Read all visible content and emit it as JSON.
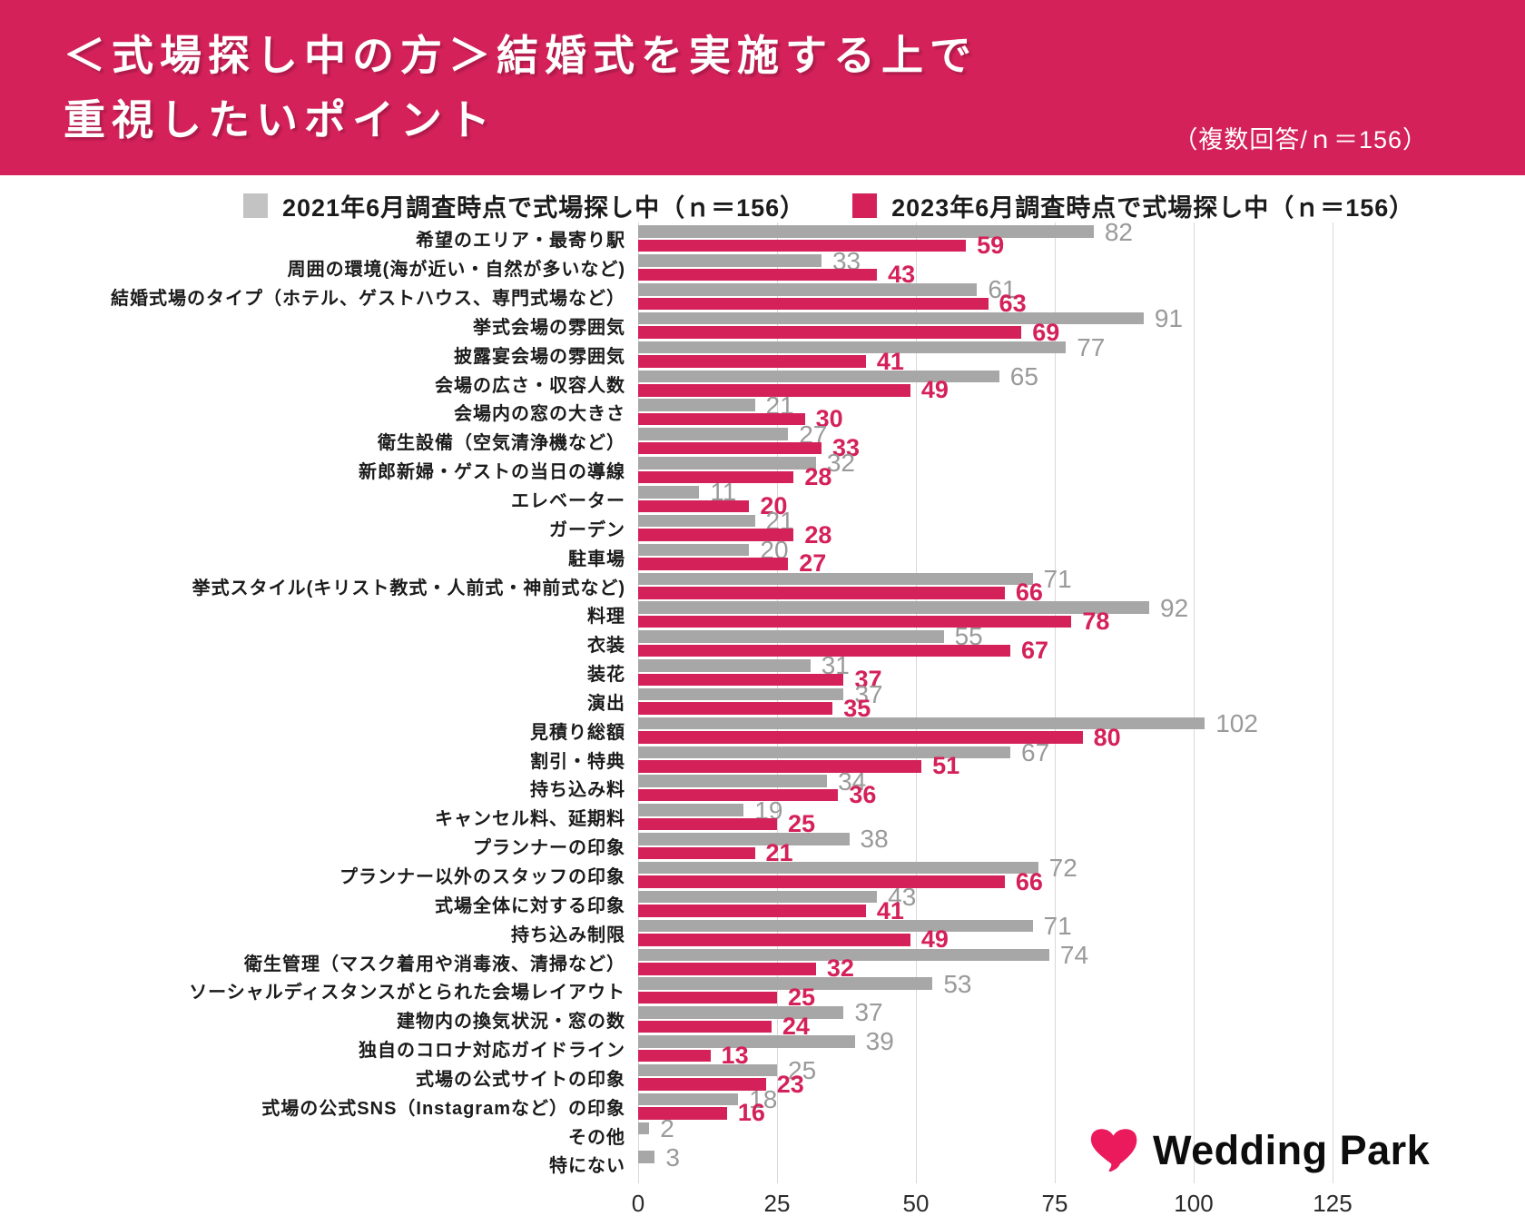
{
  "header": {
    "title_line1": "＜式場探し中の方＞結婚式を実施する上で",
    "title_line2": "重視したいポイント",
    "note": "（複数回答/ｎ＝156）"
  },
  "legend": {
    "items": [
      {
        "label": "2021年6月調査時点で式場探し中（ｎ＝156）",
        "swatch_color": "#c3c3c3"
      },
      {
        "label": "2023年6月調査時点で式場探し中（ｎ＝156）",
        "swatch_color": "#d4215a"
      }
    ]
  },
  "chart_data": {
    "type": "bar",
    "orientation": "horizontal",
    "title": "＜式場探し中の方＞結婚式を実施する上で重視したいポイント",
    "subtitle": "（複数回答/ｎ＝156）",
    "grid": true,
    "legend_position": "top",
    "x_ticks": [
      0,
      25,
      50,
      75,
      100,
      125
    ],
    "xlim": [
      0,
      141.7
    ],
    "categories": [
      "希望のエリア・最寄り駅",
      "周囲の環境(海が近い・自然が多いなど)",
      "結婚式場のタイプ（ホテル、ゲストハウス、専門式場など）",
      "挙式会場の雰囲気",
      "披露宴会場の雰囲気",
      "会場の広さ・収容人数",
      "会場内の窓の大きさ",
      "衛生設備（空気清浄機など）",
      "新郎新婦・ゲストの当日の導線",
      "エレベーター",
      "ガーデン",
      "駐車場",
      "挙式スタイル(キリスト教式・人前式・神前式など)",
      "料理",
      "衣装",
      "装花",
      "演出",
      "見積り総額",
      "割引・特典",
      "持ち込み料",
      "キャンセル料、延期料",
      "プランナーの印象",
      "プランナー以外のスタッフの印象",
      "式場全体に対する印象",
      "持ち込み制限",
      "衛生管理（マスク着用や消毒液、清掃など）",
      "ソーシャルディスタンスがとられた会場レイアウト",
      "建物内の換気状況・窓の数",
      "独自のコロナ対応ガイドライン",
      "式場の公式サイトの印象",
      "式場の公式SNS（Instagramなど）の印象",
      "その他",
      "特にない"
    ],
    "series": [
      {
        "name": "2021年6月調査時点で式場探し中（ｎ＝156）",
        "color": "#a7a7a7",
        "values": [
          82,
          33,
          61,
          91,
          77,
          65,
          21,
          27,
          32,
          11,
          21,
          20,
          71,
          92,
          55,
          31,
          37,
          102,
          67,
          34,
          19,
          38,
          72,
          43,
          71,
          74,
          53,
          37,
          39,
          25,
          18,
          2,
          3
        ]
      },
      {
        "name": "2023年6月調査時点で式場探し中（ｎ＝156）",
        "color": "#d4215a",
        "values": [
          59,
          43,
          63,
          69,
          41,
          49,
          30,
          33,
          28,
          20,
          28,
          27,
          66,
          78,
          67,
          37,
          35,
          80,
          51,
          36,
          25,
          21,
          66,
          41,
          49,
          32,
          25,
          24,
          13,
          23,
          16,
          null,
          null
        ]
      }
    ]
  },
  "logo": {
    "text": "Wedding Park",
    "heart_color": "#ea1a5d"
  },
  "colors": {
    "banner": "#d4215a",
    "bar_2021": "#a7a7a7",
    "bar_2023": "#d4215a",
    "gridline": "#d8d8d8"
  }
}
